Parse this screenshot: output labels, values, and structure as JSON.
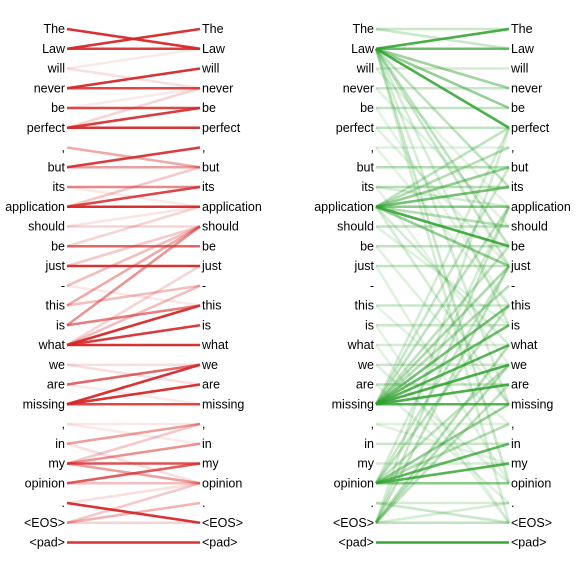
{
  "tokens": [
    "The",
    "Law",
    "will",
    "never",
    "be",
    "perfect",
    ",",
    "but",
    "its",
    "application",
    "should",
    "be",
    "just",
    "-",
    "this",
    "is",
    "what",
    "we",
    "are",
    "missing",
    ",",
    "in",
    "my",
    "opinion",
    ".",
    "<EOS>",
    "<pad>"
  ],
  "colors": {
    "red": "#d62728",
    "green": "#2ca02c"
  },
  "panels": [
    {
      "id": "red",
      "color": "#d62728",
      "edges": [
        [
          0,
          1,
          0.95
        ],
        [
          1,
          0,
          0.95
        ],
        [
          1,
          1,
          0.9
        ],
        [
          2,
          3,
          0.15
        ],
        [
          3,
          2,
          0.95
        ],
        [
          3,
          3,
          0.85
        ],
        [
          4,
          4,
          0.85
        ],
        [
          5,
          4,
          0.9
        ],
        [
          5,
          5,
          0.95
        ],
        [
          5,
          3,
          0.2
        ],
        [
          6,
          7,
          0.4
        ],
        [
          7,
          6,
          0.9
        ],
        [
          7,
          7,
          0.45
        ],
        [
          8,
          8,
          0.55
        ],
        [
          9,
          7,
          0.25
        ],
        [
          9,
          9,
          0.95
        ],
        [
          9,
          8,
          0.85
        ],
        [
          10,
          10,
          0.2
        ],
        [
          11,
          11,
          0.7
        ],
        [
          11,
          9,
          0.2
        ],
        [
          12,
          12,
          0.95
        ],
        [
          12,
          10,
          0.25
        ],
        [
          13,
          10,
          0.3
        ],
        [
          14,
          13,
          0.3
        ],
        [
          15,
          10,
          0.5
        ],
        [
          14,
          10,
          0.4
        ],
        [
          15,
          14,
          0.6
        ],
        [
          16,
          13,
          0.3
        ],
        [
          16,
          14,
          0.95
        ],
        [
          16,
          15,
          0.9
        ],
        [
          16,
          16,
          0.95
        ],
        [
          16,
          12,
          0.2
        ],
        [
          17,
          18,
          0.15
        ],
        [
          18,
          17,
          0.7
        ],
        [
          19,
          17,
          0.95
        ],
        [
          19,
          18,
          0.95
        ],
        [
          19,
          19,
          0.85
        ],
        [
          20,
          21,
          0.1
        ],
        [
          21,
          20,
          0.45
        ],
        [
          22,
          20,
          0.25
        ],
        [
          22,
          21,
          0.5
        ],
        [
          22,
          22,
          0.8
        ],
        [
          22,
          23,
          0.45
        ],
        [
          21,
          23,
          0.15
        ],
        [
          23,
          22,
          0.75
        ],
        [
          23,
          23,
          0.3
        ],
        [
          24,
          25,
          0.95
        ],
        [
          25,
          24,
          0.35
        ],
        [
          25,
          23,
          0.25
        ],
        [
          26,
          26,
          0.95
        ],
        [
          2,
          1,
          0.1
        ],
        [
          4,
          3,
          0.1
        ],
        [
          8,
          9,
          0.1
        ],
        [
          10,
          9,
          0.12
        ],
        [
          13,
          14,
          0.1
        ],
        [
          17,
          17,
          0.15
        ],
        [
          18,
          19,
          0.1
        ],
        [
          20,
          20,
          0.1
        ],
        [
          24,
          23,
          0.15
        ],
        [
          25,
          25,
          0.2
        ]
      ]
    },
    {
      "id": "green",
      "color": "#2ca02c",
      "edges": [
        [
          0,
          0,
          0.25
        ],
        [
          0,
          1,
          0.25
        ],
        [
          1,
          0,
          0.85
        ],
        [
          1,
          1,
          0.7
        ],
        [
          1,
          3,
          0.45
        ],
        [
          1,
          4,
          0.5
        ],
        [
          1,
          5,
          0.85
        ],
        [
          1,
          8,
          0.3
        ],
        [
          1,
          11,
          0.3
        ],
        [
          1,
          12,
          0.25
        ],
        [
          1,
          15,
          0.2
        ],
        [
          1,
          19,
          0.2
        ],
        [
          1,
          23,
          0.25
        ],
        [
          1,
          25,
          0.2
        ],
        [
          2,
          2,
          0.2
        ],
        [
          3,
          3,
          0.25
        ],
        [
          4,
          4,
          0.3
        ],
        [
          5,
          5,
          0.3
        ],
        [
          6,
          6,
          0.15
        ],
        [
          7,
          7,
          0.35
        ],
        [
          8,
          8,
          0.35
        ],
        [
          8,
          9,
          0.2
        ],
        [
          9,
          8,
          0.65
        ],
        [
          9,
          9,
          0.55
        ],
        [
          9,
          11,
          0.85
        ],
        [
          9,
          12,
          0.5
        ],
        [
          9,
          10,
          0.35
        ],
        [
          9,
          7,
          0.5
        ],
        [
          9,
          6,
          0.35
        ],
        [
          9,
          5,
          0.3
        ],
        [
          9,
          16,
          0.2
        ],
        [
          9,
          19,
          0.2
        ],
        [
          10,
          10,
          0.3
        ],
        [
          11,
          11,
          0.3
        ],
        [
          12,
          12,
          0.3
        ],
        [
          14,
          14,
          0.25
        ],
        [
          15,
          15,
          0.25
        ],
        [
          16,
          16,
          0.2
        ],
        [
          17,
          17,
          0.25
        ],
        [
          18,
          18,
          0.3
        ],
        [
          19,
          14,
          0.65
        ],
        [
          19,
          15,
          0.7
        ],
        [
          19,
          16,
          0.8
        ],
        [
          19,
          17,
          0.85
        ],
        [
          19,
          18,
          0.85
        ],
        [
          19,
          19,
          0.8
        ],
        [
          19,
          12,
          0.4
        ],
        [
          19,
          13,
          0.35
        ],
        [
          19,
          9,
          0.3
        ],
        [
          19,
          7,
          0.25
        ],
        [
          19,
          5,
          0.2
        ],
        [
          19,
          11,
          0.3
        ],
        [
          23,
          21,
          0.75
        ],
        [
          23,
          22,
          0.8
        ],
        [
          23,
          19,
          0.5
        ],
        [
          23,
          20,
          0.35
        ],
        [
          23,
          23,
          0.55
        ],
        [
          23,
          17,
          0.3
        ],
        [
          23,
          14,
          0.3
        ],
        [
          23,
          12,
          0.25
        ],
        [
          23,
          9,
          0.2
        ],
        [
          25,
          16,
          0.35
        ],
        [
          25,
          17,
          0.35
        ],
        [
          25,
          18,
          0.3
        ],
        [
          25,
          12,
          0.3
        ],
        [
          25,
          9,
          0.25
        ],
        [
          25,
          5,
          0.2
        ],
        [
          25,
          24,
          0.2
        ],
        [
          25,
          25,
          0.3
        ],
        [
          21,
          21,
          0.25
        ],
        [
          22,
          22,
          0.2
        ],
        [
          24,
          25,
          0.25
        ],
        [
          24,
          24,
          0.2
        ],
        [
          20,
          20,
          0.15
        ],
        [
          26,
          26,
          0.95
        ],
        [
          3,
          10,
          0.15
        ],
        [
          5,
          12,
          0.15
        ],
        [
          11,
          19,
          0.15
        ],
        [
          12,
          23,
          0.15
        ],
        [
          15,
          25,
          0.12
        ],
        [
          16,
          25,
          0.12
        ],
        [
          10,
          15,
          0.15
        ],
        [
          14,
          20,
          0.12
        ],
        [
          17,
          23,
          0.15
        ],
        [
          18,
          24,
          0.15
        ],
        [
          20,
          22,
          0.12
        ],
        [
          6,
          14,
          0.12
        ],
        [
          2,
          9,
          0.12
        ],
        [
          4,
          14,
          0.12
        ],
        [
          8,
          17,
          0.12
        ]
      ]
    }
  ]
}
